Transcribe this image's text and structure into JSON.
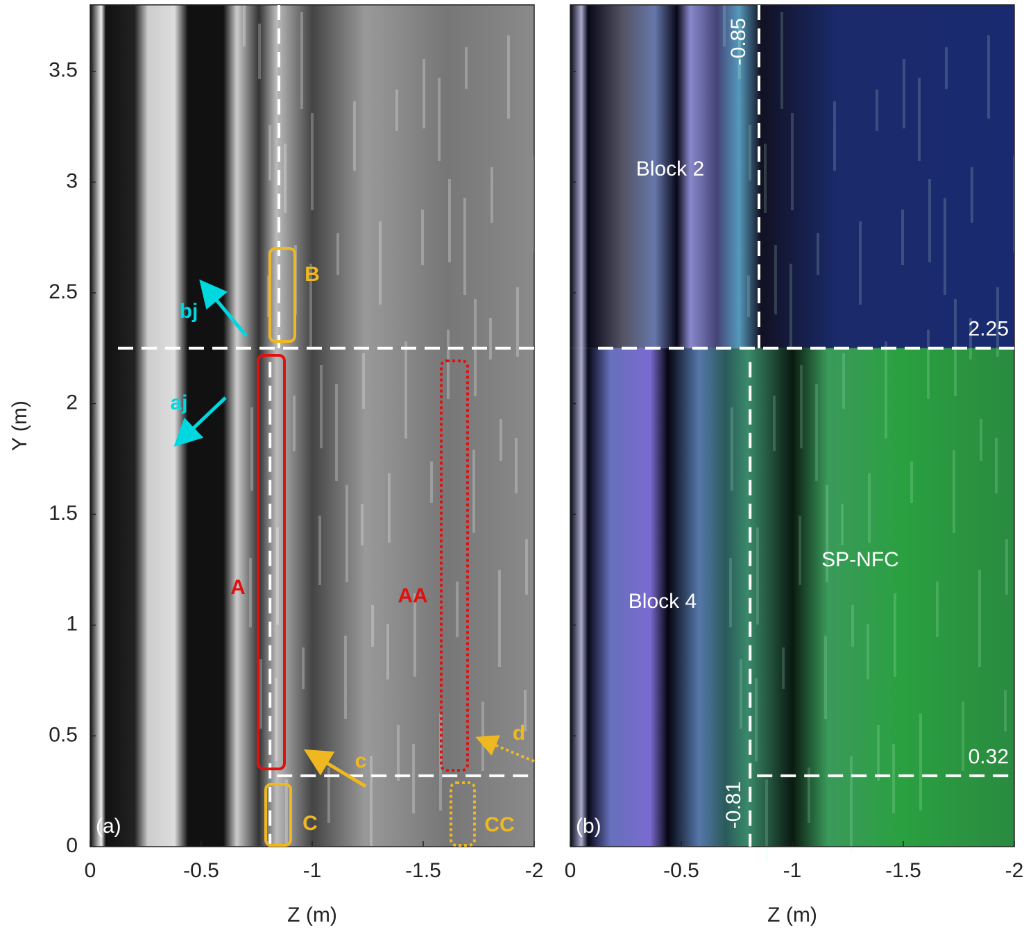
{
  "chart_data": [
    {
      "type": "image",
      "panel_label": "(a)",
      "xlabel": "Z (m)",
      "ylabel": "Y (m)",
      "xlim": [
        0,
        -2
      ],
      "xticks": [
        0,
        -0.5,
        -1,
        -1.5,
        -2
      ],
      "ylim": [
        0,
        3.8
      ],
      "yticks": [
        0,
        0.5,
        1,
        1.5,
        2,
        2.5,
        3,
        3.5
      ],
      "colormap": "gray",
      "reference_lines": {
        "y": [
          2.25,
          0.32
        ],
        "x": [
          -0.85,
          -0.81
        ]
      },
      "annotations": [
        "A",
        "AA",
        "B",
        "C",
        "CC",
        "bj",
        "aj",
        "c",
        "d"
      ]
    },
    {
      "type": "image",
      "panel_label": "(b)",
      "xlabel": "Z (m)",
      "xlim": [
        0,
        -2
      ],
      "xticks": [
        0,
        -0.5,
        -1,
        -1.5,
        -2
      ],
      "ylim": [
        0,
        3.8
      ],
      "colormap": "blue-green",
      "reference_lines": {
        "y": [
          2.25,
          0.32
        ],
        "x": [
          -0.85,
          -0.81
        ]
      },
      "annotations": [
        "Block 2",
        "Block 4",
        "SP-NFC"
      ]
    }
  ]
}
